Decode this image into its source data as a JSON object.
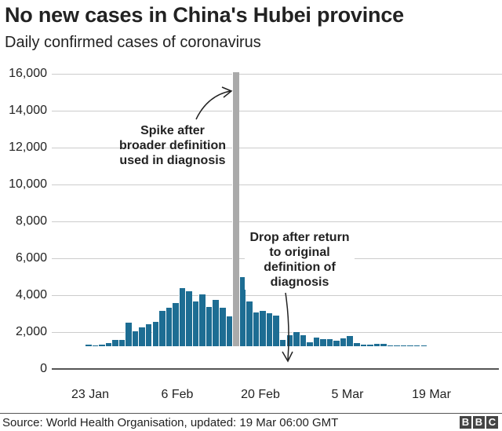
{
  "header": {
    "title": "No new cases in China's Hubei province",
    "subtitle": "Daily confirmed cases of coronavirus"
  },
  "footer": {
    "source": "Source: World Health Organisation, updated: 19 Mar 06:00 GMT",
    "logo_letters": [
      "B",
      "B",
      "C"
    ]
  },
  "annotations": {
    "spike": [
      "Spike after",
      "broader definition",
      "used in diagnosis"
    ],
    "drop": [
      "Drop after return",
      "to original",
      "definition of",
      "diagnosis"
    ]
  },
  "colors": {
    "bar": "#1d6d93",
    "spike_bar": "#aaaaaa",
    "grid": "#cccccc",
    "axis": "#555555"
  },
  "chart_data": {
    "type": "bar",
    "title": "No new cases in China's Hubei province",
    "subtitle": "Daily confirmed cases of coronavirus",
    "xlabel": "",
    "ylabel": "",
    "ylim": [
      0,
      16000
    ],
    "yticks": [
      "16,000",
      "14,000",
      "12,000",
      "10,000",
      "8,000",
      "6,000",
      "4,000",
      "2,000",
      "0"
    ],
    "ytick_values": [
      16000,
      14000,
      12000,
      10000,
      8000,
      6000,
      4000,
      2000,
      0
    ],
    "xtick_labels": [
      "23 Jan",
      "6 Feb",
      "20 Feb",
      "5 Mar",
      "19 Mar"
    ],
    "grid": true,
    "legend": null,
    "highlighted_index": 22,
    "values": [
      90,
      40,
      70,
      150,
      330,
      355,
      1260,
      820,
      1020,
      1200,
      1320,
      1910,
      2080,
      2340,
      3150,
      2970,
      2420,
      2810,
      2120,
      2510,
      2080,
      1620,
      14840,
      3760,
      2420,
      1830,
      1910,
      1790,
      1660,
      350,
      600,
      770,
      600,
      200,
      470,
      380,
      380,
      300,
      420,
      570,
      170,
      100,
      100,
      130,
      110,
      40,
      20,
      12,
      8,
      4,
      2,
      0,
      0,
      0,
      0,
      0,
      0,
      0,
      0,
      0,
      0,
      0,
      0
    ],
    "annotations": [
      {
        "text": "Spike after broader definition used in diagnosis",
        "target_index": 22
      },
      {
        "text": "Drop after return to original definition of diagnosis",
        "target_index": 29
      }
    ],
    "source": "Source: World Health Organisation, updated: 19 Mar 06:00 GMT"
  }
}
